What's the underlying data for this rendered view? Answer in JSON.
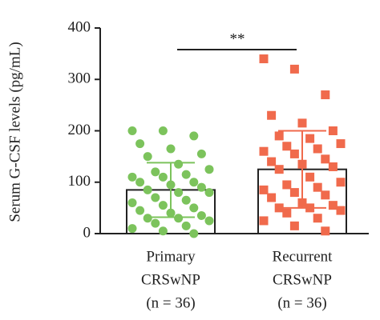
{
  "chart_data": {
    "type": "bar",
    "y_label": "Serum G-CSF levels (pg/mL)",
    "categories": [
      [
        "Primary",
        "CRSwNP",
        "(n = 36)"
      ],
      [
        "Recurrent",
        "CRSwNP",
        "(n = 36)"
      ]
    ],
    "values": [
      85,
      125
    ],
    "errors": [
      53,
      75
    ],
    "colors": [
      "#7cc35c",
      "#f06a4c"
    ],
    "points": [
      [
        200,
        200,
        190,
        175,
        165,
        155,
        150,
        135,
        125,
        120,
        115,
        110,
        110,
        100,
        100,
        95,
        90,
        85,
        80,
        80,
        70,
        65,
        60,
        55,
        50,
        45,
        40,
        35,
        30,
        30,
        25,
        20,
        15,
        10,
        5,
        0
      ],
      [
        340,
        320,
        270,
        230,
        215,
        200,
        190,
        185,
        175,
        170,
        165,
        160,
        155,
        145,
        140,
        135,
        130,
        125,
        110,
        100,
        95,
        90,
        85,
        80,
        75,
        70,
        60,
        55,
        50,
        50,
        45,
        40,
        30,
        25,
        15,
        5
      ]
    ],
    "annotation": "**",
    "ylim": [
      0,
      400
    ],
    "yticks": [
      0,
      100,
      200,
      300,
      400
    ]
  }
}
